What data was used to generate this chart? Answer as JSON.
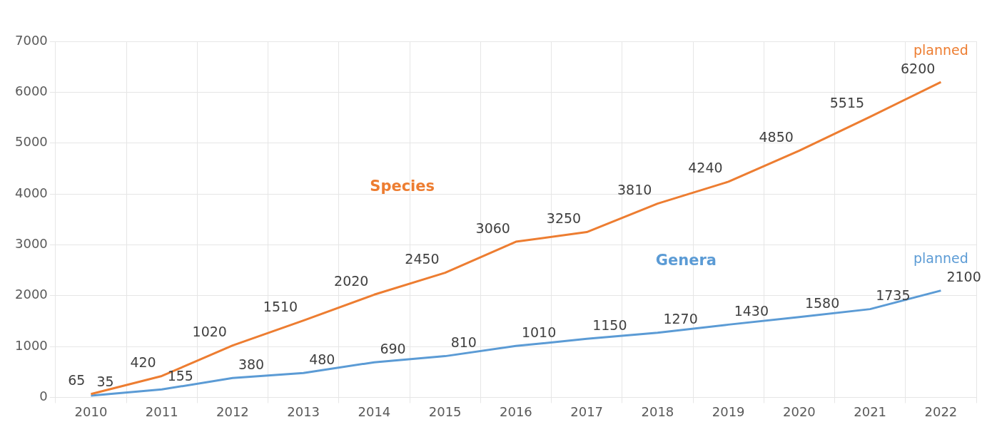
{
  "chart_data": {
    "type": "line",
    "categories": [
      "2010",
      "2011",
      "2012",
      "2013",
      "2014",
      "2015",
      "2016",
      "2017",
      "2018",
      "2019",
      "2020",
      "2021",
      "2022"
    ],
    "series": [
      {
        "name": "Species",
        "color": "#ed7d31",
        "values": [
          65,
          420,
          1020,
          1510,
          2020,
          2450,
          3060,
          3250,
          3810,
          4240,
          4850,
          5515,
          6200
        ]
      },
      {
        "name": "Genera",
        "color": "#5b9bd5",
        "values": [
          35,
          155,
          380,
          480,
          690,
          810,
          1010,
          1150,
          1270,
          1430,
          1580,
          1735,
          2100
        ]
      }
    ],
    "ylim": [
      0,
      7000
    ],
    "yticks": [
      0,
      1000,
      2000,
      3000,
      4000,
      5000,
      6000,
      7000
    ],
    "grid": true,
    "legend": false,
    "marker": "none",
    "line_style": "solid",
    "data_labels": true,
    "annotations": [
      {
        "text": "planned",
        "x": "2022",
        "y": 6200
      },
      {
        "text": "planned",
        "x": "2022",
        "y": 2100
      }
    ]
  }
}
